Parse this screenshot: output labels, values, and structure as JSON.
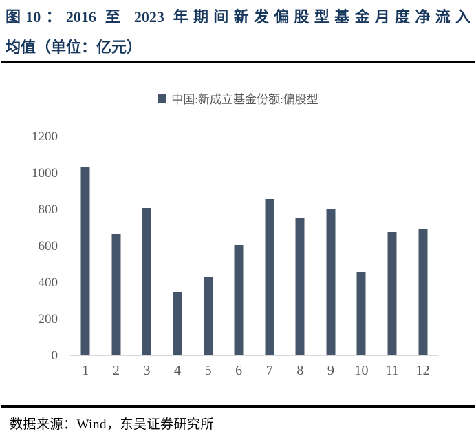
{
  "figure": {
    "title_line1": "图10：2016 至 2023 年期间新发偏股型基金月度净流入",
    "title_line2": "均值（单位：亿元）",
    "source": "数据来源：Wind，东吴证券研究所",
    "title_color": "#17375D"
  },
  "chart_data": {
    "type": "bar",
    "title": "2016 至 2023 年期间新发偏股型基金月度净流入均值（单位：亿元）",
    "legend": "中国:新成立基金份额:偏股型",
    "legend_position": "top-center",
    "categories": [
      "1",
      "2",
      "3",
      "4",
      "5",
      "6",
      "7",
      "8",
      "9",
      "10",
      "11",
      "12"
    ],
    "values": [
      1035,
      665,
      810,
      345,
      430,
      605,
      860,
      755,
      805,
      455,
      675,
      695
    ],
    "xlabel": "",
    "ylabel": "",
    "ylim": [
      0,
      1200
    ],
    "yticks": [
      0,
      200,
      400,
      600,
      800,
      1000,
      1200
    ],
    "grid": false,
    "bar_color": "#44546A",
    "axis_line_color": "#D9D9D9",
    "tick_label_color": "#595959"
  }
}
